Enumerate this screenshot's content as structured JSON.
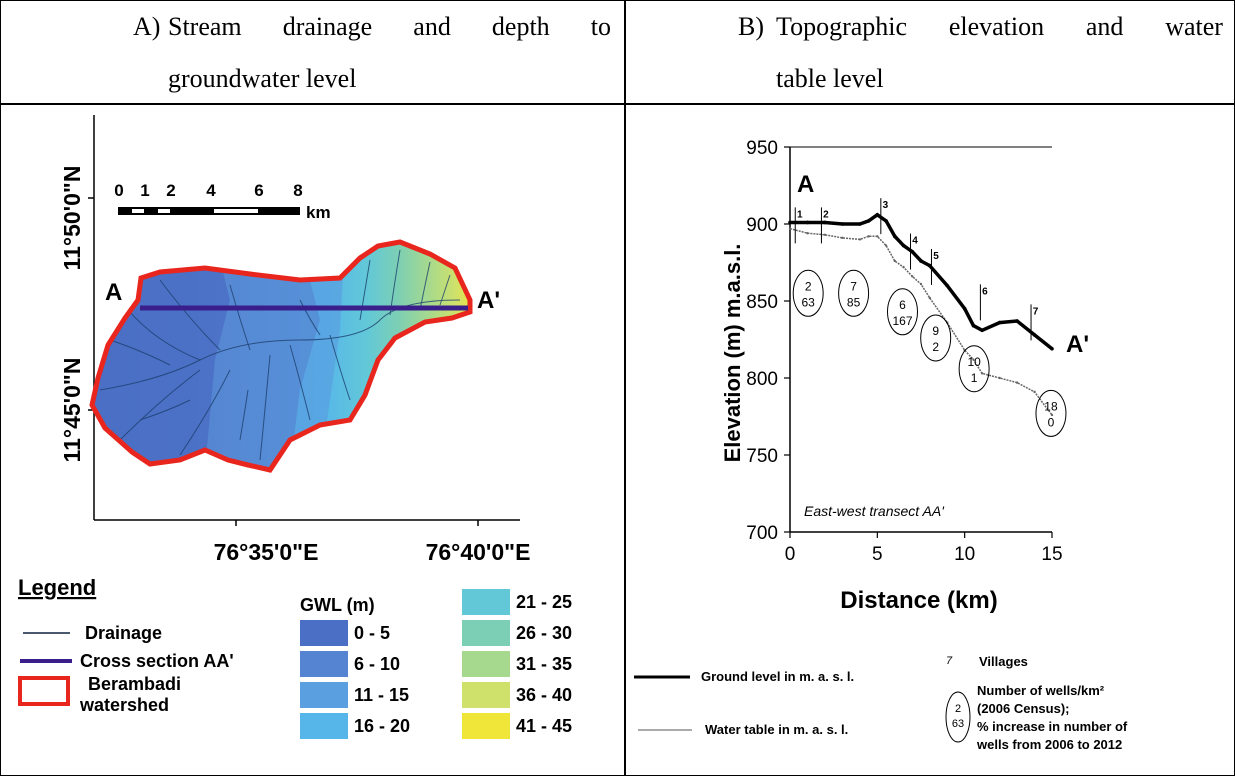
{
  "panel_a": {
    "header_letter": "A)",
    "header_line1_words": [
      "Stream",
      "drainage",
      "and",
      "depth",
      "to"
    ],
    "header_line2": "groundwater level",
    "lat_labels": [
      "11°50'0\"N",
      "11°45'0\"N"
    ],
    "lon_labels": [
      "76°35'0\"E",
      "76°40'0\"E"
    ],
    "scale_ticks": [
      "0",
      "1",
      "2",
      "4",
      "6",
      "8"
    ],
    "scale_unit": "km",
    "point_start": "A",
    "point_end": "A'",
    "legend": {
      "title": "Legend",
      "items": [
        "Drainage",
        "Cross section AA'",
        "Berambadi",
        "watershed"
      ],
      "gwl_title": "GWL (m)",
      "gwl_classes": [
        {
          "label": "0 - 5",
          "color": "#4a6fc4"
        },
        {
          "label": "6 - 10",
          "color": "#5585d2"
        },
        {
          "label": "11 - 15",
          "color": "#5aa0e0"
        },
        {
          "label": "16 - 20",
          "color": "#56b6ea"
        },
        {
          "label": "21 - 25",
          "color": "#62c8d8"
        },
        {
          "label": "26 - 30",
          "color": "#7ccfb4"
        },
        {
          "label": "31 - 35",
          "color": "#a6d98e"
        },
        {
          "label": "36 - 40",
          "color": "#cfe16a"
        },
        {
          "label": "41 - 45",
          "color": "#f0e63a"
        }
      ]
    },
    "colors": {
      "boundary": "#e8261e",
      "cross_section": "#3a1f8c",
      "drainage": "#1d3f6e"
    }
  },
  "panel_b": {
    "header_letter": "B)",
    "header_line1_words": [
      "Topographic",
      "elevation",
      "and",
      "water"
    ],
    "header_line2": "table level",
    "point_start": "A",
    "point_end": "A'",
    "annotation": "East-west transect AA'",
    "villages": [
      "1",
      "2",
      "3",
      "4",
      "5",
      "6",
      "7"
    ],
    "well_circles": [
      {
        "a": "2",
        "b": "63"
      },
      {
        "a": "7",
        "b": "85"
      },
      {
        "a": "6",
        "b": "167"
      },
      {
        "a": "9",
        "b": "2"
      },
      {
        "a": "10",
        "b": "1"
      },
      {
        "a": "18",
        "b": "0"
      }
    ],
    "legend": {
      "ground": "Ground level in m. a. s. l.",
      "water": "Water table in m. a. s. l.",
      "villages_num": "7",
      "villages": "Villages",
      "circle_a": "2",
      "circle_b": "63",
      "wells_lines": [
        "Number of wells/km²",
        "(2006 Census);",
        "% increase in number of",
        "wells from 2006 to 2012"
      ]
    }
  },
  "chart_data": {
    "type": "line",
    "xlabel": "Distance (km)",
    "ylabel": "Elevation (m) m.a.s.l.",
    "xlim": [
      0,
      15
    ],
    "ylim": [
      700,
      950
    ],
    "xticks": [
      "0",
      "5",
      "10",
      "15"
    ],
    "yticks": [
      "700",
      "750",
      "800",
      "850",
      "900",
      "950"
    ],
    "series": [
      {
        "name": "Ground level in m. a. s. l.",
        "x": [
          0,
          1,
          2,
          3,
          4,
          4.5,
          5,
          5.5,
          6,
          6.5,
          7,
          7.5,
          8,
          9,
          10,
          10.5,
          11,
          12,
          13,
          14,
          15
        ],
        "values": [
          901,
          901,
          901,
          900,
          900,
          902,
          906,
          902,
          892,
          886,
          882,
          876,
          873,
          860,
          845,
          834,
          831,
          836,
          837,
          828,
          819
        ]
      },
      {
        "name": "Water table in m. a. s. l.",
        "x": [
          0,
          1,
          2,
          3,
          4,
          4.5,
          5,
          5.5,
          6,
          6.5,
          7,
          7.5,
          8,
          9,
          10,
          10.5,
          11,
          12,
          13,
          14,
          15
        ],
        "values": [
          897,
          894,
          893,
          891,
          890,
          892,
          892,
          886,
          876,
          872,
          866,
          861,
          852,
          836,
          818,
          812,
          803,
          800,
          797,
          791,
          776
        ]
      }
    ]
  }
}
